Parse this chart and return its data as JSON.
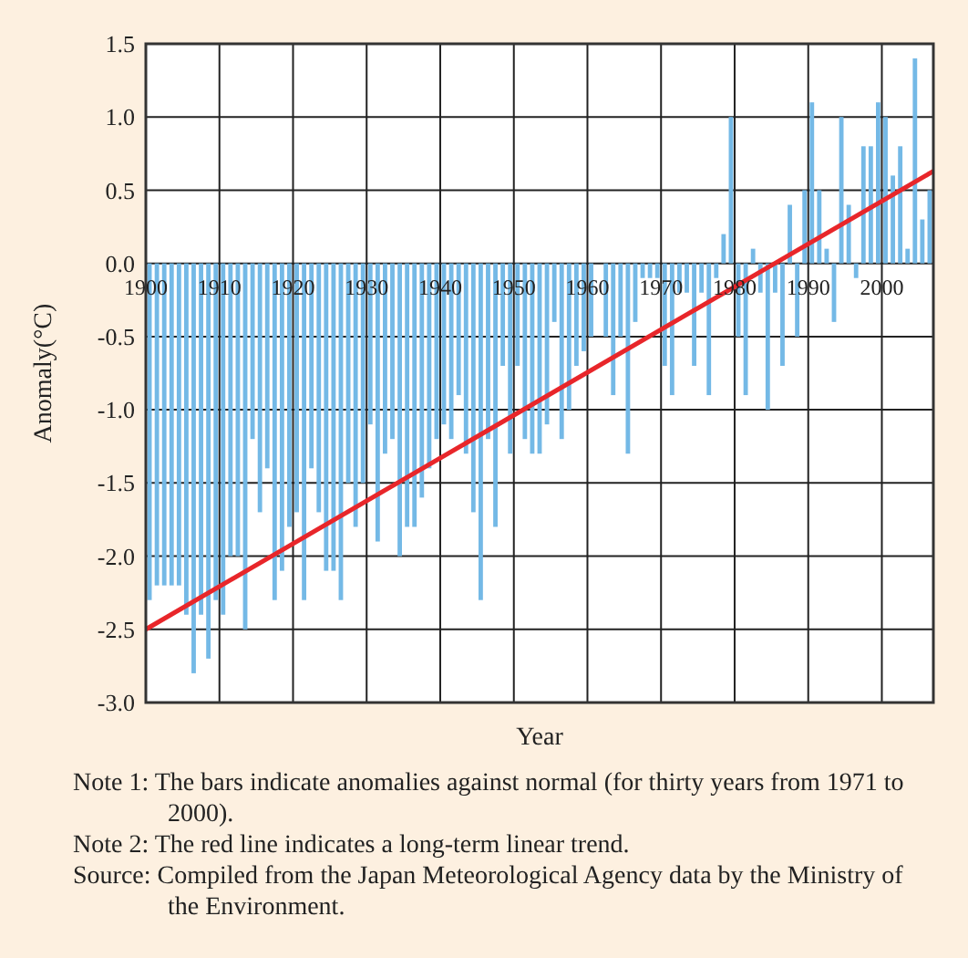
{
  "chart_data": {
    "type": "bar",
    "xlabel": "Year",
    "ylabel": "Anomaly(°C)",
    "x": [
      1900,
      1901,
      1902,
      1903,
      1904,
      1905,
      1906,
      1907,
      1908,
      1909,
      1910,
      1911,
      1912,
      1913,
      1914,
      1915,
      1916,
      1917,
      1918,
      1919,
      1920,
      1921,
      1922,
      1923,
      1924,
      1925,
      1926,
      1927,
      1928,
      1929,
      1930,
      1931,
      1932,
      1933,
      1934,
      1935,
      1936,
      1937,
      1938,
      1939,
      1940,
      1941,
      1942,
      1943,
      1944,
      1945,
      1946,
      1947,
      1948,
      1949,
      1950,
      1951,
      1952,
      1953,
      1954,
      1955,
      1956,
      1957,
      1958,
      1959,
      1960,
      1961,
      1962,
      1963,
      1964,
      1965,
      1966,
      1967,
      1968,
      1969,
      1970,
      1971,
      1972,
      1973,
      1974,
      1975,
      1976,
      1977,
      1978,
      1979,
      1980,
      1981,
      1982,
      1983,
      1984,
      1985,
      1986,
      1987,
      1988,
      1989,
      1990,
      1991,
      1992,
      1993,
      1994,
      1995,
      1996,
      1997,
      1998,
      1999,
      2000,
      2001,
      2002,
      2003,
      2004,
      2005,
      2006
    ],
    "series": [
      {
        "color": "#74b9e6",
        "values": [
          -2.3,
          -2.2,
          -2.2,
          -2.2,
          -2.2,
          -2.4,
          -2.8,
          -2.4,
          -2.7,
          -2.3,
          -2.4,
          -2.0,
          -2.0,
          -2.5,
          -1.2,
          -1.7,
          -1.4,
          -2.3,
          -2.1,
          -1.8,
          -1.7,
          -2.3,
          -1.4,
          -1.7,
          -2.1,
          -2.1,
          -2.3,
          -1.5,
          -1.8,
          -1.5,
          -1.1,
          -1.9,
          -1.3,
          -1.2,
          -2.0,
          -1.8,
          -1.8,
          -1.6,
          -1.4,
          -1.2,
          -1.1,
          -1.2,
          -0.9,
          -1.3,
          -1.7,
          -2.3,
          -1.2,
          -1.8,
          -0.7,
          -1.3,
          -0.7,
          -1.2,
          -1.3,
          -1.3,
          -1.1,
          -0.4,
          -1.2,
          -1.0,
          -0.7,
          -0.6,
          -0.5,
          0,
          -0.5,
          -0.9,
          -0.5,
          -1.3,
          -0.4,
          -0.1,
          -0.1,
          -0.1,
          -0.7,
          -0.9,
          -0.2,
          -0.2,
          -0.7,
          -0.2,
          -0.9,
          -0.1,
          0.2,
          1.0,
          -0.5,
          -0.9,
          0.1,
          -0.2,
          -1.0,
          -0.2,
          -0.7,
          0.4,
          -0.5,
          0.5,
          1.1,
          0.5,
          0.1,
          -0.4,
          1.0,
          0.4,
          -0.1,
          0.8,
          0.8,
          1.1,
          1.0,
          0.6,
          0.8,
          0.1,
          1.4,
          0.3,
          0.5
        ]
      },
      {
        "type": "line",
        "color": "#e8262a",
        "x": [
          1900,
          2007
        ],
        "values": [
          -2.5,
          0.63
        ]
      }
    ],
    "xlim": [
      1900,
      2007
    ],
    "xticks": [
      1900,
      1910,
      1920,
      1930,
      1940,
      1950,
      1960,
      1970,
      1980,
      1990,
      2000
    ],
    "ylim": [
      -3,
      1.5
    ],
    "yticks": [
      {
        "value": -3,
        "label": "-3.0"
      },
      {
        "value": -2.5,
        "label": "-2.5"
      },
      {
        "value": -2,
        "label": "-2.0"
      },
      {
        "value": -1.5,
        "label": "-1.5"
      },
      {
        "value": -1,
        "label": "-1.0"
      },
      {
        "value": -0.5,
        "label": "-0.5"
      },
      {
        "value": 0,
        "label": "0.0"
      },
      {
        "value": 0.5,
        "label": "0.5"
      },
      {
        "value": 1,
        "label": "1.0"
      },
      {
        "value": 1.5,
        "label": "1.5"
      }
    ],
    "grid": true,
    "annotations": [
      "Note 1: The bars indicate anomalies against normal (for thirty years from 1971 to 2000).",
      "Note 2: The red line indicates a long-term linear trend.",
      "Source: Compiled from the Japan Meteorological Agency data by the Ministry of the Environment."
    ]
  }
}
